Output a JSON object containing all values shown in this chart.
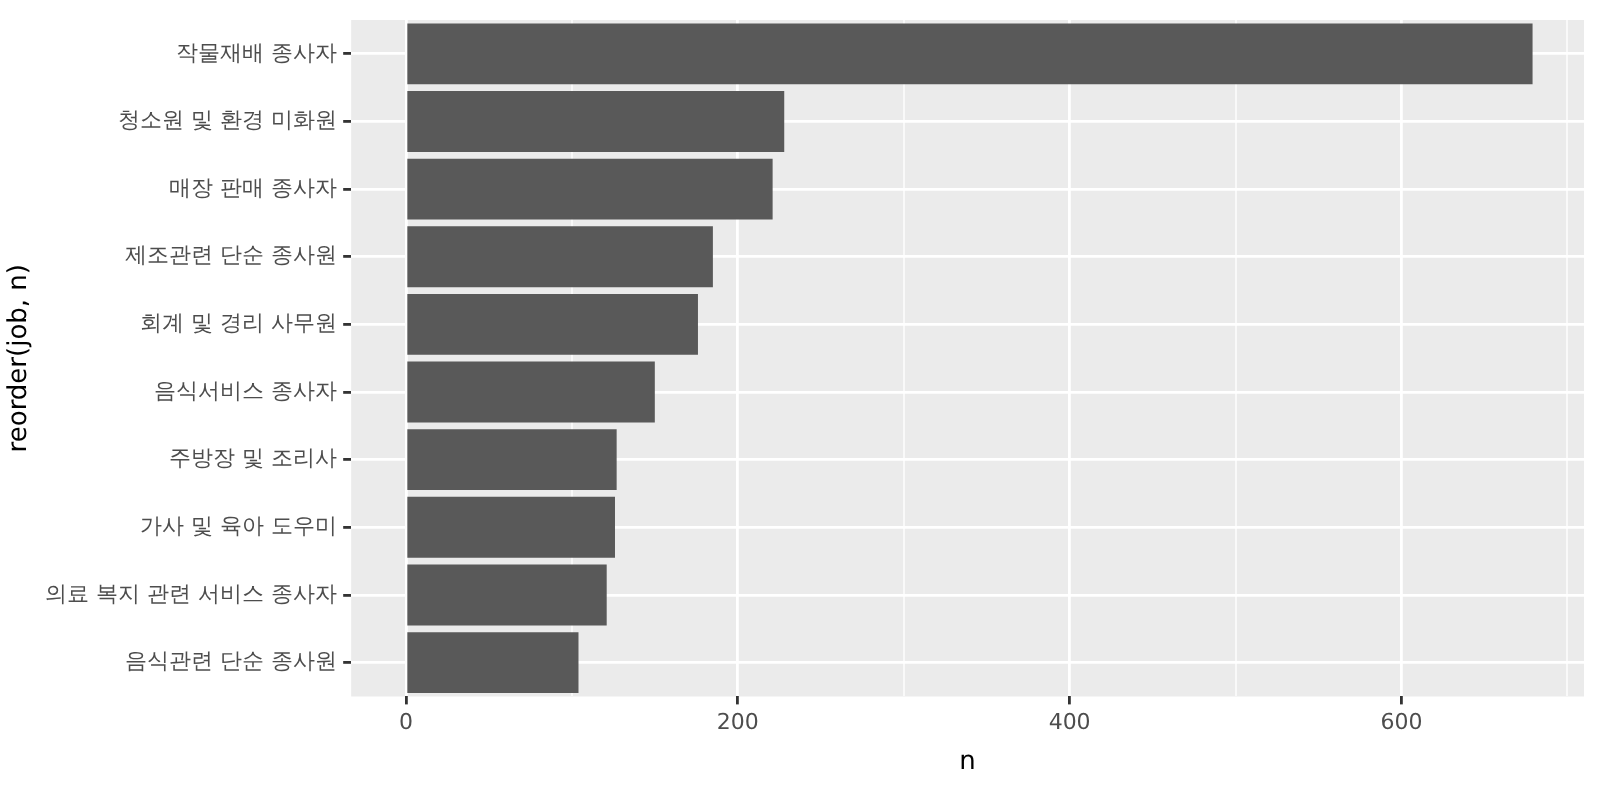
{
  "chart_data": {
    "type": "bar",
    "orientation": "horizontal",
    "xlabel": "n",
    "ylabel": "reorder(job, n)",
    "categories": [
      "작물재배 종사자",
      "청소원 및 환경 미화원",
      "매장 판매 종사자",
      "제조관련 단순 종사원",
      "회계 및 경리 사무원",
      "음식서비스 종사자",
      "주방장 및 조리사",
      "가사 및 육아 도우미",
      "의료 복지 관련 서비스 종사자",
      "음식관련 단순 종사원"
    ],
    "values": [
      679,
      228,
      221,
      185,
      176,
      150,
      127,
      126,
      121,
      104
    ],
    "color": "#595959",
    "xlim": [
      -33,
      710
    ],
    "xticks": [
      0,
      {
        "value": 100,
        "label": null
      },
      200,
      {
        "value": 300,
        "label": null
      },
      400,
      {
        "value": 500,
        "label": null
      },
      600,
      {
        "value": 700,
        "label": null
      }
    ],
    "grid": true,
    "legend": false
  }
}
